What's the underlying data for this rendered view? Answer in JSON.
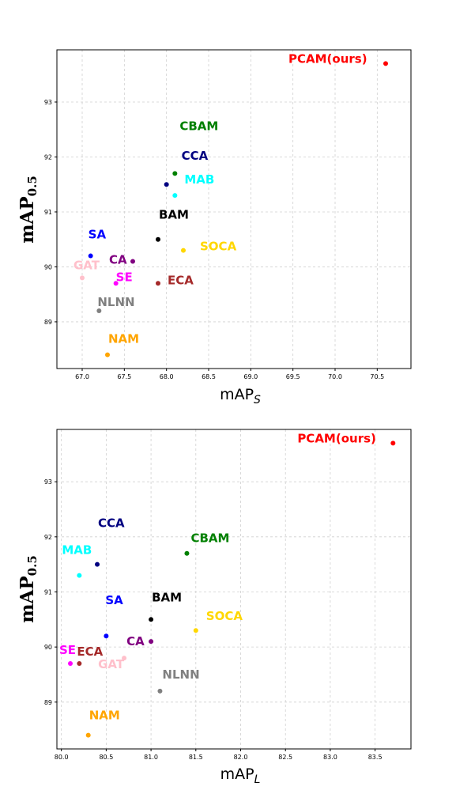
{
  "chart_data": [
    {
      "type": "scatter",
      "xlabel_base": "mAP",
      "xlabel_sub": "S",
      "ylabel_base": "mAP",
      "ylabel_sub": "0.5",
      "xlim": [
        66.7,
        70.9
      ],
      "ylim": [
        88.15,
        93.95
      ],
      "xticks": [
        67.0,
        67.5,
        68.0,
        68.5,
        69.0,
        69.5,
        70.0,
        70.5
      ],
      "yticks": [
        89,
        90,
        91,
        92,
        93
      ],
      "grid": true,
      "points": [
        {
          "label": "PCAM(ours)",
          "x": 70.6,
          "y": 93.7,
          "color": "#ff0000"
        },
        {
          "label": "CBAM",
          "x": 68.1,
          "y": 91.7,
          "color": "#008000"
        },
        {
          "label": "CCA",
          "x": 68.0,
          "y": 91.5,
          "color": "#000080"
        },
        {
          "label": "MAB",
          "x": 68.1,
          "y": 91.3,
          "color": "#00ffff"
        },
        {
          "label": "BAM",
          "x": 67.9,
          "y": 90.5,
          "color": "#000000"
        },
        {
          "label": "SA",
          "x": 67.1,
          "y": 90.2,
          "color": "#0000ff"
        },
        {
          "label": "CA",
          "x": 67.6,
          "y": 90.1,
          "color": "#800080"
        },
        {
          "label": "SOCA",
          "x": 68.2,
          "y": 90.3,
          "color": "#ffd700"
        },
        {
          "label": "GAT",
          "x": 67.0,
          "y": 89.8,
          "color": "#ffc0cb"
        },
        {
          "label": "SE",
          "x": 67.4,
          "y": 89.7,
          "color": "#ff00ff"
        },
        {
          "label": "ECA",
          "x": 67.9,
          "y": 89.7,
          "color": "#a52a2a"
        },
        {
          "label": "NLNN",
          "x": 67.2,
          "y": 89.2,
          "color": "#808080"
        },
        {
          "label": "NAM",
          "x": 67.3,
          "y": 88.4,
          "color": "#ffa500"
        }
      ]
    },
    {
      "type": "scatter",
      "xlabel_base": "mAP",
      "xlabel_sub": "L",
      "ylabel_base": "mAP",
      "ylabel_sub": "0.5",
      "xlim": [
        79.95,
        83.9
      ],
      "ylim": [
        88.15,
        93.95
      ],
      "xticks": [
        80.0,
        80.5,
        81.0,
        81.5,
        82.0,
        82.5,
        83.0,
        83.5
      ],
      "yticks": [
        89,
        90,
        91,
        92,
        93
      ],
      "grid": true,
      "points": [
        {
          "label": "PCAM(ours)",
          "x": 83.7,
          "y": 93.7,
          "color": "#ff0000"
        },
        {
          "label": "CCA",
          "x": 80.4,
          "y": 91.5,
          "color": "#000080"
        },
        {
          "label": "CBAM",
          "x": 81.4,
          "y": 91.7,
          "color": "#008000"
        },
        {
          "label": "MAB",
          "x": 80.2,
          "y": 91.3,
          "color": "#00ffff"
        },
        {
          "label": "SA",
          "x": 80.5,
          "y": 90.2,
          "color": "#0000ff"
        },
        {
          "label": "BAM",
          "x": 81.0,
          "y": 90.5,
          "color": "#000000"
        },
        {
          "label": "SOCA",
          "x": 81.5,
          "y": 90.3,
          "color": "#ffd700"
        },
        {
          "label": "ECA",
          "x": 80.2,
          "y": 89.7,
          "color": "#a52a2a"
        },
        {
          "label": "CA",
          "x": 81.0,
          "y": 90.1,
          "color": "#800080"
        },
        {
          "label": "SE",
          "x": 80.1,
          "y": 89.7,
          "color": "#ff00ff"
        },
        {
          "label": "GAT",
          "x": 80.7,
          "y": 89.8,
          "color": "#ffc0cb"
        },
        {
          "label": "NLNN",
          "x": 81.1,
          "y": 89.2,
          "color": "#808080"
        },
        {
          "label": "NAM",
          "x": 80.3,
          "y": 88.4,
          "color": "#ffa500"
        }
      ]
    }
  ]
}
